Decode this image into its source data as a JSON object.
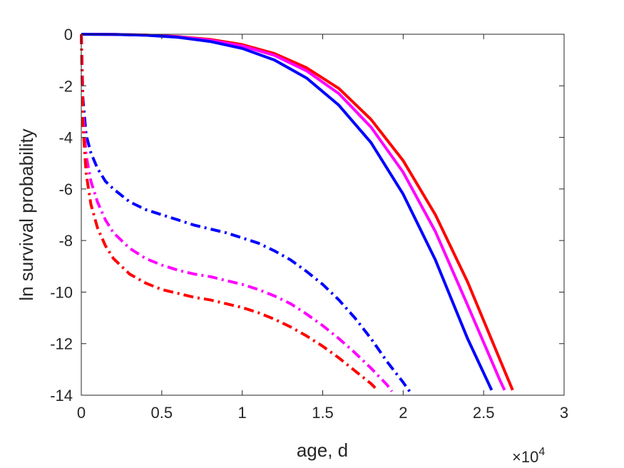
{
  "chart_data": {
    "type": "line",
    "title": "",
    "xlabel": "age, d",
    "ylabel": "ln survival probability",
    "x_multiplier": {
      "base": "×10",
      "exponent": "4"
    },
    "xlim": [
      0,
      30000
    ],
    "ylim": [
      -14,
      0
    ],
    "x_ticks": [
      0,
      5000,
      10000,
      15000,
      20000,
      25000,
      30000
    ],
    "x_tick_labels": [
      "0",
      "0.5",
      "1",
      "1.5",
      "2",
      "2.5",
      "3"
    ],
    "y_ticks": [
      0,
      -2,
      -4,
      -6,
      -8,
      -10,
      -12,
      -14
    ],
    "y_tick_labels": [
      "0",
      "-2",
      "-4",
      "-6",
      "-8",
      "-10",
      "-12",
      "-14"
    ],
    "grid": false,
    "legend": "none",
    "series": [
      {
        "color": "#ff0000",
        "style": "solid",
        "x": [
          0,
          2000,
          4000,
          6000,
          8000,
          10000,
          12000,
          14000,
          16000,
          18000,
          20000,
          22000,
          24000,
          26000,
          26800
        ],
        "y": [
          0,
          -0.005,
          -0.03,
          -0.09,
          -0.2,
          -0.4,
          -0.75,
          -1.3,
          -2.1,
          -3.3,
          -4.9,
          -7.0,
          -9.6,
          -12.6,
          -13.8
        ]
      },
      {
        "color": "#ff00ff",
        "style": "solid",
        "x": [
          0,
          2000,
          4000,
          6000,
          8000,
          10000,
          12000,
          14000,
          16000,
          18000,
          20000,
          22000,
          24000,
          26000,
          26300
        ],
        "y": [
          0,
          -0.005,
          -0.035,
          -0.1,
          -0.23,
          -0.45,
          -0.82,
          -1.42,
          -2.3,
          -3.6,
          -5.35,
          -7.65,
          -10.5,
          -13.4,
          -13.8
        ]
      },
      {
        "color": "#0000ff",
        "style": "solid",
        "x": [
          0,
          2000,
          4000,
          6000,
          8000,
          10000,
          12000,
          14000,
          16000,
          18000,
          20000,
          22000,
          24000,
          25500
        ],
        "y": [
          0,
          -0.008,
          -0.04,
          -0.12,
          -0.28,
          -0.55,
          -1.0,
          -1.7,
          -2.75,
          -4.2,
          -6.2,
          -8.75,
          -11.8,
          -13.8
        ]
      },
      {
        "color": "#0000ff",
        "style": "dashdot",
        "x": [
          0,
          100,
          300,
          600,
          1000,
          1500,
          2000,
          3000,
          4000,
          5000,
          6000,
          7000,
          8000,
          9000,
          10000,
          11000,
          12000,
          13000,
          14000,
          15000,
          16000,
          17000,
          18000,
          19000,
          20000,
          20400
        ],
        "y": [
          0,
          -2.5,
          -3.9,
          -4.6,
          -5.2,
          -5.7,
          -6.0,
          -6.5,
          -6.8,
          -7.0,
          -7.2,
          -7.4,
          -7.55,
          -7.7,
          -7.9,
          -8.1,
          -8.4,
          -8.75,
          -9.2,
          -9.7,
          -10.3,
          -11.0,
          -11.8,
          -12.7,
          -13.5,
          -13.85
        ]
      },
      {
        "color": "#ff00ff",
        "style": "dashdot",
        "x": [
          0,
          100,
          300,
          600,
          1000,
          1500,
          2000,
          3000,
          4000,
          5000,
          6000,
          7000,
          8000,
          9000,
          10000,
          11000,
          12000,
          13000,
          14000,
          15000,
          16000,
          17000,
          18000,
          19000,
          19300
        ],
        "y": [
          0,
          -3.0,
          -4.7,
          -5.7,
          -6.5,
          -7.2,
          -7.7,
          -8.3,
          -8.7,
          -8.95,
          -9.15,
          -9.3,
          -9.4,
          -9.55,
          -9.7,
          -9.9,
          -10.15,
          -10.45,
          -10.85,
          -11.3,
          -11.8,
          -12.35,
          -12.95,
          -13.6,
          -13.85
        ]
      },
      {
        "color": "#ff0000",
        "style": "dashdot",
        "x": [
          0,
          100,
          300,
          600,
          1000,
          1500,
          2000,
          3000,
          4000,
          5000,
          6000,
          7000,
          8000,
          9000,
          10000,
          11000,
          12000,
          13000,
          14000,
          15000,
          16000,
          17000,
          18000,
          18400
        ],
        "y": [
          0,
          -3.5,
          -5.4,
          -6.6,
          -7.5,
          -8.2,
          -8.7,
          -9.3,
          -9.65,
          -9.9,
          -10.05,
          -10.2,
          -10.3,
          -10.45,
          -10.6,
          -10.8,
          -11.05,
          -11.35,
          -11.7,
          -12.1,
          -12.55,
          -13.05,
          -13.55,
          -13.8
        ]
      }
    ]
  }
}
